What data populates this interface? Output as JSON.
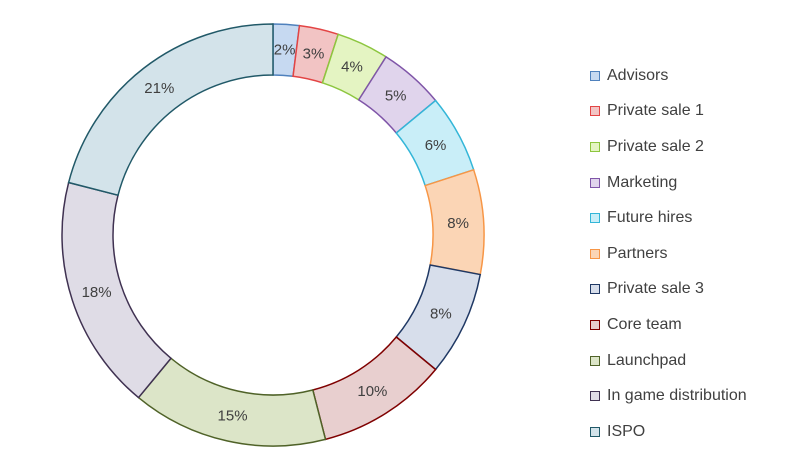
{
  "chart_data": {
    "type": "pie",
    "title": "",
    "legend_position": "right",
    "categories": [
      "Advisors",
      "Private sale 1",
      "Private sale 2",
      "Marketing",
      "Future hires",
      "Partners",
      "Private sale 3",
      "Core team",
      "Launchpad",
      "In game distribution",
      "ISPO"
    ],
    "values": [
      2,
      3,
      4,
      5,
      6,
      8,
      8,
      10,
      15,
      18,
      21
    ],
    "labels": [
      "2%",
      "3%",
      "4%",
      "5%",
      "6%",
      "8%",
      "8%",
      "10%",
      "15%",
      "18%",
      "21%"
    ],
    "colors": [
      {
        "fill": "#C6D9F1",
        "stroke": "#4F81BD"
      },
      {
        "fill": "#F2C4C4",
        "stroke": "#E34444"
      },
      {
        "fill": "#E4F4C2",
        "stroke": "#8DC63F"
      },
      {
        "fill": "#E0D4EC",
        "stroke": "#7F55A8"
      },
      {
        "fill": "#C9EEF8",
        "stroke": "#33B6D8"
      },
      {
        "fill": "#FBD5B5",
        "stroke": "#F79646"
      },
      {
        "fill": "#D7DEEB",
        "stroke": "#1F3864"
      },
      {
        "fill": "#E8CFCF",
        "stroke": "#7F0000"
      },
      {
        "fill": "#DCE5C8",
        "stroke": "#4F6228"
      },
      {
        "fill": "#DFDCE6",
        "stroke": "#3F3151"
      },
      {
        "fill": "#D3E3EA",
        "stroke": "#215968"
      }
    ]
  }
}
